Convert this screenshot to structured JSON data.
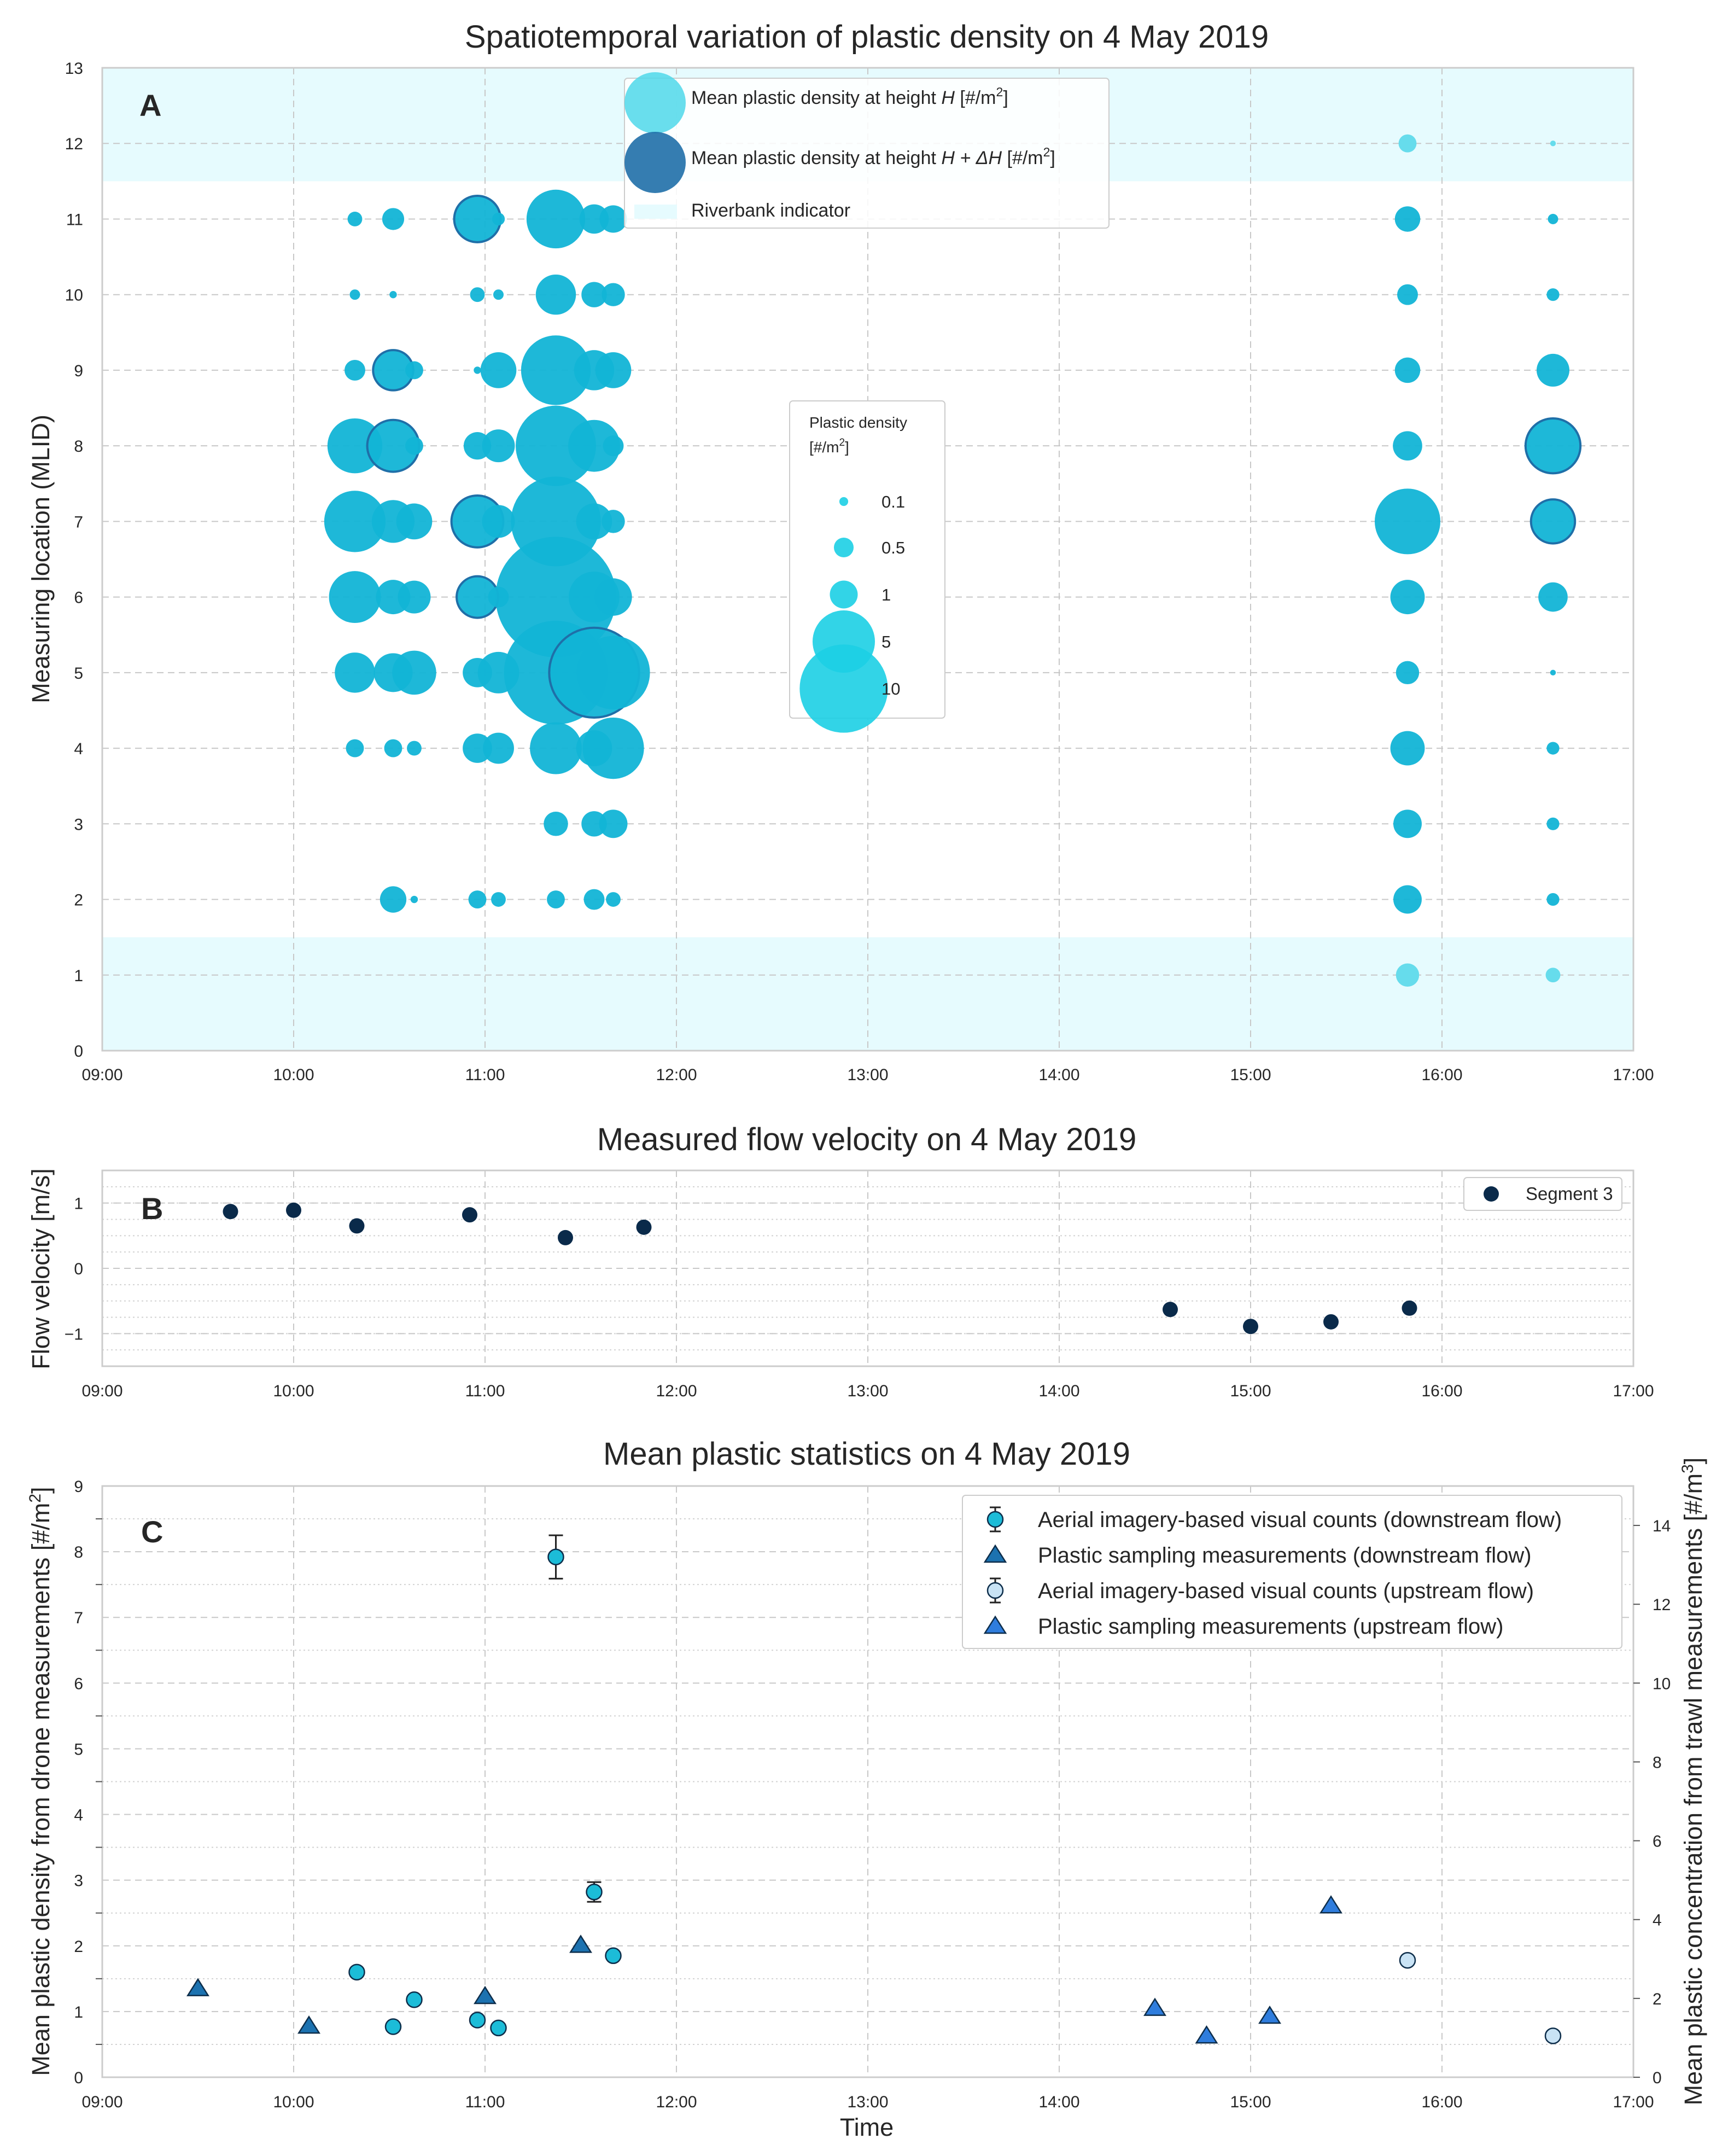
{
  "colors": {
    "bubble_h": "#12b4d6",
    "bubble_h_light": "#66dcec",
    "bubble_dh": "#1f6fa8",
    "riverbank": "#e6fbfe",
    "velocity": "#0a2a4a",
    "down_circle": "#1cbcd8",
    "up_circle": "#c9e3f5",
    "tri_down": "#1c72b0",
    "tri_up": "#2f7ddd",
    "grid": "#c8c8c8",
    "axis": "#cccccc",
    "text": "#262626"
  },
  "chart_data": [
    {
      "panel": "A",
      "type": "scatter",
      "title": "Spatiotemporal variation of plastic density on 4 May 2019",
      "ylabel": "Measuring location (MLID)",
      "xlabel": "",
      "panel_label": "A",
      "x_ticks": [
        "09:00",
        "10:00",
        "11:00",
        "12:00",
        "13:00",
        "14:00",
        "15:00",
        "16:00",
        "17:00"
      ],
      "xlim": [
        9,
        17
      ],
      "y_ticks": [
        "0",
        "1",
        "2",
        "3",
        "4",
        "5",
        "6",
        "7",
        "8",
        "9",
        "10",
        "11",
        "12",
        "13"
      ],
      "ylim": [
        0,
        13
      ],
      "riverbank_bands": [
        [
          0,
          1.5
        ],
        [
          11.5,
          13
        ]
      ],
      "legend": {
        "series": [
          {
            "key": "h",
            "label": "Mean plastic density at height H [#/m²]",
            "pre": "Mean plastic density at height ",
            "italic": "H",
            "post": " [#/m",
            "sup": "2",
            "end": "]"
          },
          {
            "key": "dh",
            "label": "Mean plastic density at height H + ΔH [#/m²]",
            "pre": "Mean plastic density at height ",
            "italic": "H + ΔH",
            "post": " [#/m",
            "sup": "2",
            "end": "]"
          },
          {
            "key": "bank",
            "label": "Riverbank indicator",
            "pre": "Riverbank indicator"
          }
        ]
      },
      "size_legend": {
        "title": "Plastic density",
        "title_unit": "[#/m²]",
        "title_unit_pre": "[#/m",
        "title_unit_sup": "2",
        "title_unit_end": "]",
        "entries": [
          {
            "label": "0.1",
            "value": 0.1
          },
          {
            "label": "0.5",
            "value": 0.5
          },
          {
            "label": "1",
            "value": 1
          },
          {
            "label": "5",
            "value": 5
          },
          {
            "label": "10",
            "value": 10
          }
        ]
      },
      "times": [
        10.32,
        10.52,
        10.63,
        10.96,
        11.07,
        11.37,
        11.57,
        11.67,
        15.82,
        16.58
      ],
      "points": [
        {
          "t": 10.32,
          "y": 11,
          "v": 0.2
        },
        {
          "t": 10.52,
          "y": 11,
          "v": 0.45
        },
        {
          "t": 10.96,
          "y": 11,
          "v": 2.0,
          "dh": true
        },
        {
          "t": 11.07,
          "y": 11,
          "v": 0.15
        },
        {
          "t": 11.37,
          "y": 11,
          "v": 3.2
        },
        {
          "t": 11.57,
          "y": 11,
          "v": 0.8
        },
        {
          "t": 11.67,
          "y": 11,
          "v": 0.7
        },
        {
          "t": 10.32,
          "y": 10,
          "v": 0.1
        },
        {
          "t": 10.52,
          "y": 10,
          "v": 0.05
        },
        {
          "t": 10.96,
          "y": 10,
          "v": 0.2
        },
        {
          "t": 11.07,
          "y": 10,
          "v": 0.1
        },
        {
          "t": 11.37,
          "y": 10,
          "v": 1.5
        },
        {
          "t": 11.57,
          "y": 10,
          "v": 0.6
        },
        {
          "t": 11.67,
          "y": 10,
          "v": 0.5
        },
        {
          "t": 10.32,
          "y": 9,
          "v": 0.4
        },
        {
          "t": 10.52,
          "y": 9,
          "v": 1.5,
          "dh": true
        },
        {
          "t": 10.63,
          "y": 9,
          "v": 0.3
        },
        {
          "t": 10.96,
          "y": 9,
          "v": 0.05
        },
        {
          "t": 11.07,
          "y": 9,
          "v": 1.2
        },
        {
          "t": 11.37,
          "y": 9,
          "v": 4.5
        },
        {
          "t": 11.57,
          "y": 9,
          "v": 1.5
        },
        {
          "t": 11.67,
          "y": 9,
          "v": 1.2
        },
        {
          "t": 10.32,
          "y": 8,
          "v": 2.8
        },
        {
          "t": 10.52,
          "y": 8,
          "v": 2.5,
          "dh": true
        },
        {
          "t": 10.63,
          "y": 8,
          "v": 0.3
        },
        {
          "t": 10.96,
          "y": 8,
          "v": 0.7
        },
        {
          "t": 11.07,
          "y": 8,
          "v": 1.0
        },
        {
          "t": 11.37,
          "y": 8,
          "v": 6.0
        },
        {
          "t": 11.57,
          "y": 8,
          "v": 2.5
        },
        {
          "t": 11.67,
          "y": 8,
          "v": 0.4
        },
        {
          "t": 10.32,
          "y": 7,
          "v": 3.5
        },
        {
          "t": 10.52,
          "y": 7,
          "v": 1.7
        },
        {
          "t": 10.63,
          "y": 7,
          "v": 1.2
        },
        {
          "t": 10.96,
          "y": 7,
          "v": 2.5,
          "dh": true
        },
        {
          "t": 11.07,
          "y": 7,
          "v": 1.0
        },
        {
          "t": 11.37,
          "y": 7,
          "v": 7.5
        },
        {
          "t": 11.57,
          "y": 7,
          "v": 1.2
        },
        {
          "t": 11.67,
          "y": 7,
          "v": 0.5
        },
        {
          "t": 10.32,
          "y": 6,
          "v": 2.5
        },
        {
          "t": 10.52,
          "y": 6,
          "v": 1.1
        },
        {
          "t": 10.63,
          "y": 6,
          "v": 1.0
        },
        {
          "t": 10.96,
          "y": 6,
          "v": 1.6,
          "dh": true
        },
        {
          "t": 11.07,
          "y": 6,
          "v": 0.4
        },
        {
          "t": 11.37,
          "y": 6,
          "v": 13.5
        },
        {
          "t": 11.57,
          "y": 6,
          "v": 2.4
        },
        {
          "t": 11.67,
          "y": 6,
          "v": 1.3
        },
        {
          "t": 10.32,
          "y": 5,
          "v": 1.5
        },
        {
          "t": 10.52,
          "y": 5,
          "v": 1.4
        },
        {
          "t": 10.63,
          "y": 5,
          "v": 1.8
        },
        {
          "t": 10.96,
          "y": 5,
          "v": 0.8
        },
        {
          "t": 11.07,
          "y": 5,
          "v": 1.6
        },
        {
          "t": 11.37,
          "y": 5,
          "v": 10.0
        },
        {
          "t": 11.57,
          "y": 5,
          "v": 7.5,
          "dh": true
        },
        {
          "t": 11.67,
          "y": 5,
          "v": 5.0
        },
        {
          "t": 10.32,
          "y": 4,
          "v": 0.3
        },
        {
          "t": 10.52,
          "y": 4,
          "v": 0.3
        },
        {
          "t": 10.63,
          "y": 4,
          "v": 0.2
        },
        {
          "t": 10.96,
          "y": 4,
          "v": 0.8
        },
        {
          "t": 11.07,
          "y": 4,
          "v": 0.9
        },
        {
          "t": 11.37,
          "y": 4,
          "v": 2.5
        },
        {
          "t": 11.57,
          "y": 4,
          "v": 1.2
        },
        {
          "t": 11.67,
          "y": 4,
          "v": 3.5
        },
        {
          "t": 11.37,
          "y": 3,
          "v": 0.55
        },
        {
          "t": 11.57,
          "y": 3,
          "v": 0.6
        },
        {
          "t": 11.67,
          "y": 3,
          "v": 0.75
        },
        {
          "t": 10.52,
          "y": 2,
          "v": 0.65
        },
        {
          "t": 10.63,
          "y": 2,
          "v": 0.05
        },
        {
          "t": 10.96,
          "y": 2,
          "v": 0.3
        },
        {
          "t": 11.07,
          "y": 2,
          "v": 0.2
        },
        {
          "t": 11.37,
          "y": 2,
          "v": 0.3
        },
        {
          "t": 11.57,
          "y": 2,
          "v": 0.4
        },
        {
          "t": 11.67,
          "y": 2,
          "v": 0.2
        },
        {
          "t": 15.82,
          "y": 12,
          "v": 0.3,
          "light": true
        },
        {
          "t": 16.58,
          "y": 12,
          "v": 0.03,
          "light": true
        },
        {
          "t": 15.82,
          "y": 11,
          "v": 0.6
        },
        {
          "t": 16.58,
          "y": 11,
          "v": 0.1
        },
        {
          "t": 15.82,
          "y": 10,
          "v": 0.4
        },
        {
          "t": 16.58,
          "y": 10,
          "v": 0.15
        },
        {
          "t": 15.82,
          "y": 9,
          "v": 0.6
        },
        {
          "t": 16.58,
          "y": 9,
          "v": 1.0
        },
        {
          "t": 15.82,
          "y": 8,
          "v": 0.8
        },
        {
          "t": 16.58,
          "y": 8,
          "v": 2.8,
          "dh": true
        },
        {
          "t": 15.82,
          "y": 7,
          "v": 4.0
        },
        {
          "t": 16.58,
          "y": 7,
          "v": 1.8,
          "dh": true
        },
        {
          "t": 15.82,
          "y": 6,
          "v": 1.1
        },
        {
          "t": 16.58,
          "y": 6,
          "v": 0.8
        },
        {
          "t": 15.82,
          "y": 5,
          "v": 0.5
        },
        {
          "t": 16.58,
          "y": 5,
          "v": 0.03
        },
        {
          "t": 15.82,
          "y": 4,
          "v": 1.1
        },
        {
          "t": 16.58,
          "y": 4,
          "v": 0.15
        },
        {
          "t": 15.82,
          "y": 3,
          "v": 0.75
        },
        {
          "t": 16.58,
          "y": 3,
          "v": 0.15
        },
        {
          "t": 15.82,
          "y": 2,
          "v": 0.75
        },
        {
          "t": 16.58,
          "y": 2,
          "v": 0.15
        },
        {
          "t": 15.82,
          "y": 1,
          "v": 0.5,
          "light": true
        },
        {
          "t": 16.58,
          "y": 1,
          "v": 0.2,
          "light": true
        }
      ]
    },
    {
      "panel": "B",
      "type": "scatter",
      "title": "Measured flow velocity on 4 May 2019",
      "ylabel": "Flow velocity [m/s]",
      "panel_label": "B",
      "x_ticks": [
        "09:00",
        "10:00",
        "11:00",
        "12:00",
        "13:00",
        "14:00",
        "15:00",
        "16:00",
        "17:00"
      ],
      "xlim": [
        9,
        17
      ],
      "y_ticks": [
        "−1",
        "0",
        "1"
      ],
      "ylim": [
        -1.5,
        1.5
      ],
      "legend": [
        "Segment 3"
      ],
      "series": [
        {
          "name": "Segment 3",
          "x": [
            9.67,
            10.0,
            10.33,
            10.92,
            11.42,
            11.83,
            14.58,
            15.0,
            15.42,
            15.83
          ],
          "y": [
            0.87,
            0.89,
            0.65,
            0.82,
            0.47,
            0.63,
            -0.63,
            -0.89,
            -0.82,
            -0.61
          ]
        }
      ]
    },
    {
      "panel": "C",
      "type": "scatter",
      "title": "Mean plastic statistics on 4 May 2019",
      "ylabel_left": "Mean plastic density from drone measurements [#/m²]",
      "ylabel_left_pre": "Mean plastic density from drone measurements [#/m",
      "ylabel_left_sup": "2",
      "ylabel_left_end": "]",
      "ylabel_right": "Mean plastic concentration from trawl measurements [#/m³]",
      "ylabel_right_pre": "Mean plastic concentration from trawl measurements [#/m",
      "ylabel_right_sup": "3",
      "ylabel_right_end": "]",
      "xlabel": "Time",
      "panel_label": "C",
      "x_ticks": [
        "09:00",
        "10:00",
        "11:00",
        "12:00",
        "13:00",
        "14:00",
        "15:00",
        "16:00",
        "17:00"
      ],
      "xlim": [
        9,
        17
      ],
      "y_ticks_left": [
        "0",
        "1",
        "2",
        "3",
        "4",
        "5",
        "6",
        "7",
        "8",
        "9"
      ],
      "ylim_left": [
        0,
        9
      ],
      "y_ticks_right": [
        "0",
        "2",
        "4",
        "6",
        "8",
        "10",
        "12",
        "14"
      ],
      "ylim_right": [
        0,
        15
      ],
      "legend": [
        "Aerial imagery-based visual counts (downstream flow)",
        "Plastic sampling measurements (downstream flow)",
        "Aerial imagery-based visual counts (upstream flow)",
        "Plastic sampling measurements (upstream flow)"
      ],
      "series": [
        {
          "name": "Aerial imagery-based visual counts (downstream flow)",
          "axis": "left",
          "marker": "circle",
          "x": [
            10.33,
            10.52,
            10.63,
            10.96,
            11.07,
            11.37,
            11.57,
            11.67
          ],
          "y": [
            1.6,
            0.77,
            1.18,
            0.87,
            0.75,
            7.92,
            2.82,
            1.85
          ],
          "err": [
            0,
            0,
            0,
            0,
            0,
            0.33,
            0.15,
            0
          ]
        },
        {
          "name": "Plastic sampling measurements (downstream flow)",
          "axis": "right",
          "marker": "triangle",
          "x": [
            9.5,
            10.08,
            11.0,
            11.5
          ],
          "y": [
            2.25,
            1.3,
            2.05,
            3.35
          ]
        },
        {
          "name": "Aerial imagery-based visual counts (upstream flow)",
          "axis": "left",
          "marker": "circle_open",
          "x": [
            15.82,
            16.58
          ],
          "y": [
            1.78,
            0.63
          ],
          "err": [
            0,
            0
          ]
        },
        {
          "name": "Plastic sampling measurements (upstream flow)",
          "axis": "right",
          "marker": "triangle",
          "x": [
            14.5,
            14.77,
            15.1,
            15.42
          ],
          "y": [
            1.75,
            1.05,
            1.55,
            4.35
          ]
        }
      ]
    }
  ]
}
